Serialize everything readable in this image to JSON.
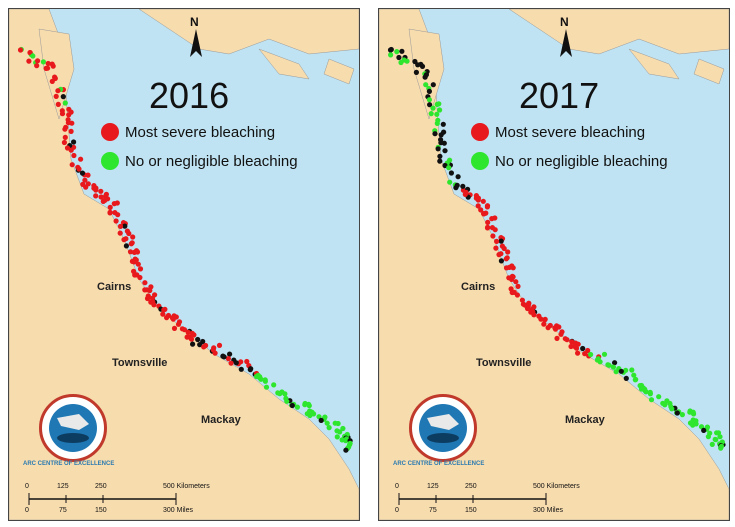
{
  "panels": [
    {
      "year": "2016",
      "legend": [
        {
          "label": "Most severe bleaching",
          "color": "#e8191c"
        },
        {
          "label": "No or negligible bleaching",
          "color": "#2ee62e"
        }
      ],
      "cities": [
        "Cairns",
        "Townsville",
        "Mackay"
      ],
      "logo_text": "ARC CENTRE OF EXCELLENCE",
      "scale": {
        "km_ticks": [
          "0",
          "125",
          "250",
          "500 Kilometers"
        ],
        "mi_ticks": [
          "0",
          "75",
          "150",
          "300 Miles"
        ]
      },
      "north_label": "N"
    },
    {
      "year": "2017",
      "legend": [
        {
          "label": "Most severe bleaching",
          "color": "#e8191c"
        },
        {
          "label": "No or negligible bleaching",
          "color": "#2ee62e"
        }
      ],
      "cities": [
        "Cairns",
        "Townsville",
        "Mackay"
      ],
      "logo_text": "ARC CENTRE OF EXCELLENCE",
      "scale": {
        "km_ticks": [
          "0",
          "125",
          "250",
          "500 Kilometers"
        ],
        "mi_ticks": [
          "0",
          "75",
          "150",
          "300 Miles"
        ]
      },
      "north_label": "N"
    }
  ],
  "colors": {
    "sea": "#bfe3f2",
    "land": "#f7dcae",
    "severe": "#e8191c",
    "none": "#2ee62e",
    "unsurveyed": "#111111"
  }
}
